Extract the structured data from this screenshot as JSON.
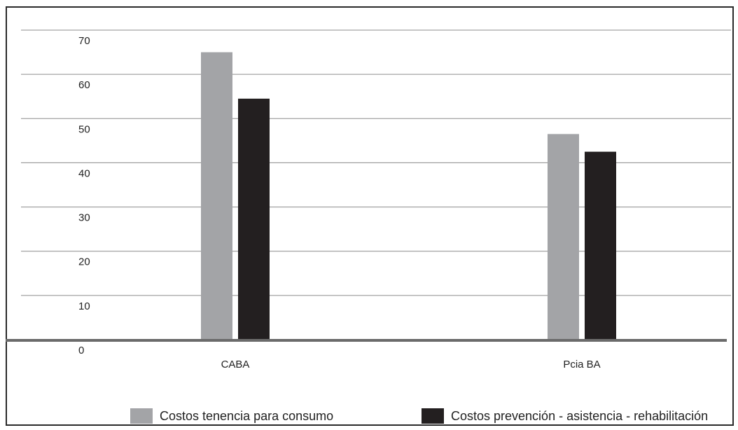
{
  "chart_data": {
    "type": "bar",
    "categories": [
      "CABA",
      "Pcia BA"
    ],
    "series": [
      {
        "name": "Costos tenencia para consumo",
        "values": [
          65,
          46.5
        ],
        "color": "#a3a4a7"
      },
      {
        "name": "Costos prevención - asistencia - rehabilitación",
        "values": [
          54.5,
          42.5
        ],
        "color": "#231f20"
      }
    ],
    "y_ticks": [
      "0",
      "10",
      "20",
      "30",
      "40",
      "50",
      "60",
      "70"
    ],
    "ylim": [
      0,
      70
    ],
    "grid": true,
    "legend_position": "bottom",
    "gridline_color": "#8c8c8c",
    "baseline_color": "#6b6b6b"
  }
}
